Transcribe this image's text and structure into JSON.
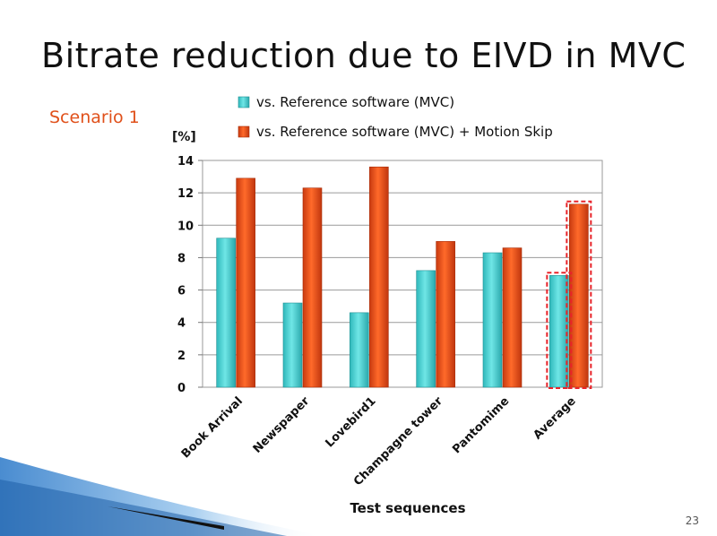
{
  "slide": {
    "title": "Bitrate reduction due to EIVD in MVC",
    "subtitle": "Scenario 1",
    "page_number": "23"
  },
  "colors": {
    "series1": "#4fd6d6",
    "series2": "#f0541a",
    "highlight": "#e8242a",
    "accent_text": "#e0501a"
  },
  "chart_data": {
    "type": "bar",
    "categories": [
      "Book Arrival",
      "Newspaper",
      "Lovebird1",
      "Champagne tower",
      "Pantomime",
      "Average"
    ],
    "series": [
      {
        "name": "vs. Reference software (MVC)",
        "values": [
          9.2,
          5.2,
          4.6,
          7.2,
          8.3,
          6.9
        ]
      },
      {
        "name": "vs. Reference software (MVC) + Motion Skip",
        "values": [
          12.9,
          12.3,
          13.6,
          9.0,
          8.6,
          11.3
        ]
      }
    ],
    "title": "",
    "xlabel": "Test sequences",
    "ylabel": "[%]",
    "ylim": [
      0,
      14
    ],
    "yticks": [
      0,
      2,
      4,
      6,
      8,
      10,
      12,
      14
    ],
    "grid": true,
    "legend": "top",
    "highlighted_category": "Average"
  }
}
